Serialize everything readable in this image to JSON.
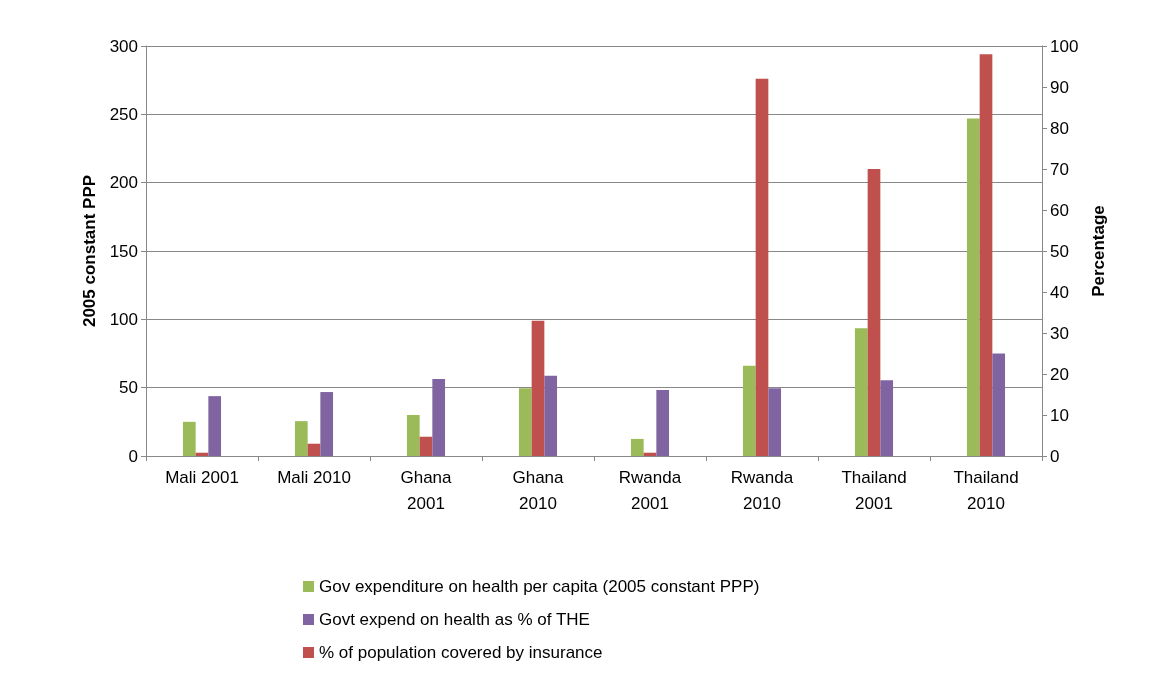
{
  "chart_data": {
    "type": "bar",
    "categories": [
      "Mali 2001",
      "Mali 2010",
      "Ghana 2001",
      "Ghana 2010",
      "Rwanda 2001",
      "Rwanda 2010",
      "Thailand 2001",
      "Thailand 2010"
    ],
    "series": [
      {
        "name": "Gov expenditure on health per capita (2005 constant PPP)",
        "color": "#9bbb59",
        "values": [
          25,
          25.5,
          30,
          49.5,
          12.5,
          66,
          93.5,
          247
        ]
      },
      {
        "name": "% of population covered by insurance",
        "color": "#c0504d",
        "axis": "y2",
        "values": [
          0.8,
          3,
          4.7,
          33,
          0.8,
          92,
          70,
          98
        ]
      },
      {
        "name": "Govt expend on health as % of THE",
        "color": "#8064a2",
        "axis": "y2",
        "values": [
          14.6,
          15.6,
          18.8,
          19.6,
          16.1,
          16.5,
          18.5,
          25
        ]
      }
    ],
    "ylabel": "2005 constant PPP",
    "y2label": "Percentage",
    "ylim": [
      0,
      300
    ],
    "yticks": [
      0,
      50,
      100,
      150,
      200,
      250,
      300
    ],
    "y2lim": [
      0,
      100
    ],
    "y2ticks": [
      0,
      10,
      20,
      30,
      40,
      50,
      60,
      70,
      80,
      90,
      100
    ],
    "grid": "y",
    "legend": "bottom"
  }
}
